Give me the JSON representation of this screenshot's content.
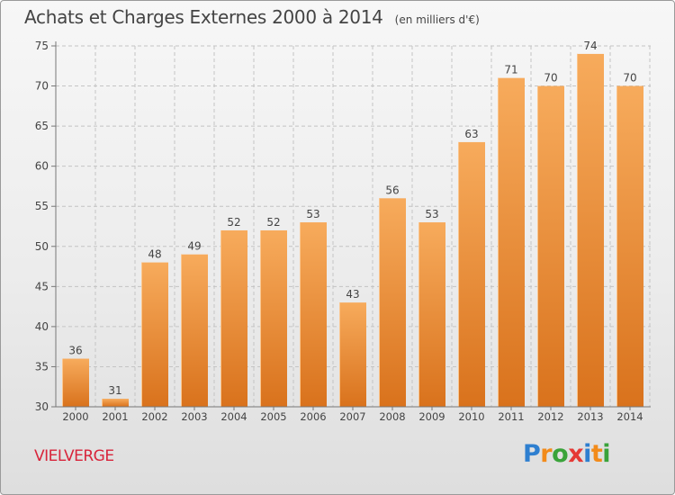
{
  "title": "Achats et Charges Externes 2000 à 2014",
  "subtitle": "(en milliers d'€)",
  "place_label": "VIELVERGE",
  "brand": {
    "letters": [
      "P",
      "r",
      "o",
      "x",
      "i",
      "t",
      "i"
    ],
    "colors": [
      "#2e7fd0",
      "#f28b1a",
      "#3aa33a",
      "#e53935",
      "#2e7fd0",
      "#f28b1a",
      "#3aa33a"
    ]
  },
  "colors": {
    "bar_light": "#f7ab5c",
    "bar_dark": "#d9721c",
    "grid": "#c4c4c4",
    "text": "#444444",
    "place": "#d8243a"
  },
  "chart_data": {
    "type": "bar",
    "categories": [
      "2000",
      "2001",
      "2002",
      "2003",
      "2004",
      "2005",
      "2006",
      "2007",
      "2008",
      "2009",
      "2010",
      "2011",
      "2012",
      "2013",
      "2014"
    ],
    "values": [
      36,
      31,
      48,
      49,
      52,
      52,
      53,
      43,
      56,
      53,
      63,
      71,
      70,
      74,
      70
    ],
    "data_labels": [
      "36",
      "31",
      "48",
      "49",
      "52",
      "52",
      "53",
      "43",
      "56",
      "53",
      "63",
      "71",
      "70",
      "74",
      "70"
    ],
    "yticks": [
      "30",
      "35",
      "40",
      "45",
      "50",
      "55",
      "60",
      "65",
      "70",
      "75"
    ],
    "ylim": [
      30,
      75
    ],
    "grid": true,
    "legend": "none"
  }
}
